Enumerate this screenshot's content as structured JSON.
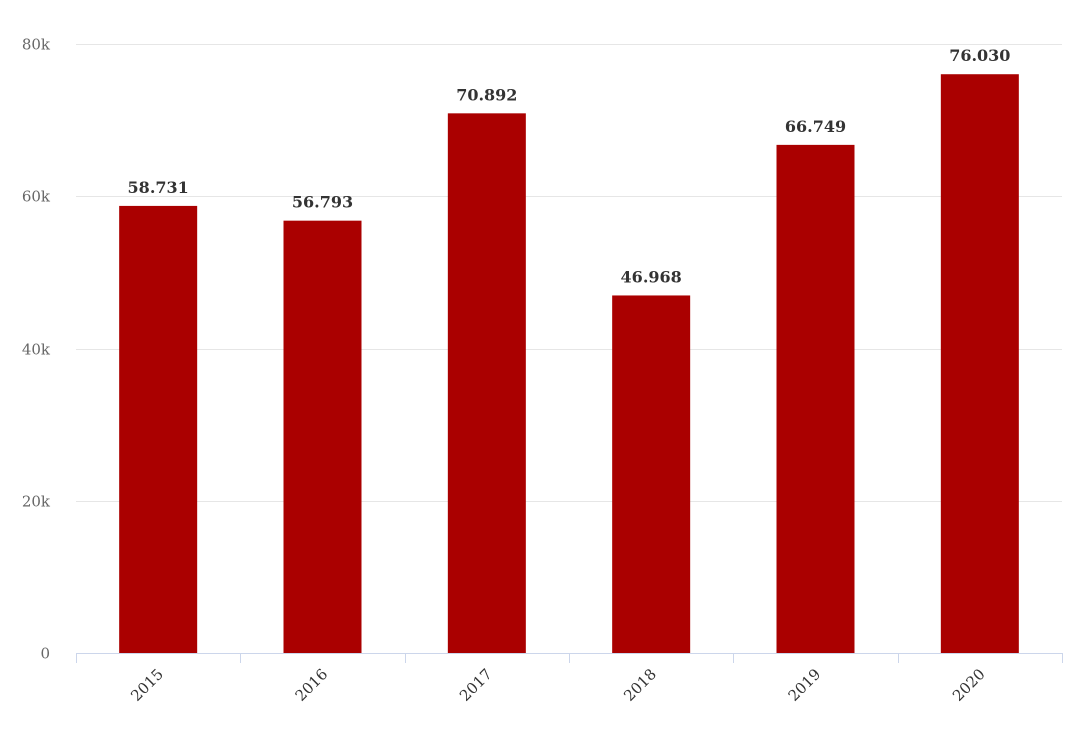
{
  "chart_data": {
    "type": "bar",
    "title": "",
    "xlabel": "",
    "ylabel": "",
    "categories": [
      "2015",
      "2016",
      "2017",
      "2018",
      "2019",
      "2020"
    ],
    "values": [
      58731,
      56793,
      70892,
      46968,
      66749,
      76030
    ],
    "data_labels": [
      "58.731",
      "56.793",
      "70.892",
      "46.968",
      "66.749",
      "76.030"
    ],
    "ylim": [
      0,
      80000
    ],
    "yticks": [
      0,
      20000,
      40000,
      60000,
      80000
    ],
    "ytick_labels": [
      "0",
      "20k",
      "40k",
      "60k",
      "80k"
    ],
    "grid": true,
    "legend": "none",
    "bar_color": "#aa0000",
    "grid_color": "#e6e6e6",
    "axis_color": "#ccd6eb"
  }
}
